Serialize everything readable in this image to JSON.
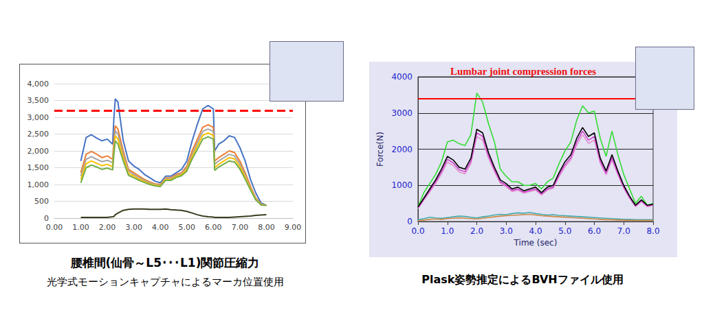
{
  "chart_data": [
    {
      "type": "line",
      "caption": [
        "腰椎間(仙骨～L5･･･L1)関節圧縮力",
        "光学式モーションキャプチャによるマーカ位置使用"
      ],
      "x": [
        1.0,
        1.2,
        1.4,
        1.6,
        1.8,
        2.0,
        2.2,
        2.25,
        2.3,
        2.4,
        2.6,
        2.8,
        3.0,
        3.2,
        3.4,
        3.6,
        3.8,
        4.0,
        4.2,
        4.4,
        4.6,
        4.8,
        5.0,
        5.2,
        5.4,
        5.6,
        5.8,
        6.0,
        6.05,
        6.2,
        6.4,
        6.6,
        6.8,
        7.0,
        7.2,
        7.4,
        7.6,
        7.8,
        8.0
      ],
      "series": [
        {
          "color": "#4472c4",
          "values": [
            1700,
            2400,
            2480,
            2380,
            2300,
            2350,
            2200,
            3000,
            3550,
            3450,
            2300,
            1700,
            1550,
            1450,
            1300,
            1200,
            1100,
            1050,
            1250,
            1250,
            1350,
            1450,
            1700,
            2300,
            2800,
            3250,
            3350,
            3250,
            2000,
            2200,
            2300,
            2450,
            2400,
            2100,
            1700,
            1150,
            750,
            450,
            380
          ]
        },
        {
          "color": "#ed7d31",
          "values": [
            1350,
            1900,
            1980,
            1900,
            1800,
            1850,
            1750,
            2350,
            2750,
            2650,
            2000,
            1450,
            1350,
            1250,
            1150,
            1080,
            1020,
            1000,
            1200,
            1200,
            1300,
            1350,
            1550,
            2000,
            2350,
            2700,
            2780,
            2700,
            1700,
            1800,
            1900,
            2000,
            1950,
            1700,
            1350,
            950,
            600,
            420,
            380
          ]
        },
        {
          "color": "#a5a5a5",
          "values": [
            1250,
            1750,
            1830,
            1750,
            1680,
            1720,
            1650,
            2200,
            2600,
            2500,
            1900,
            1400,
            1300,
            1200,
            1120,
            1050,
            1000,
            980,
            1180,
            1180,
            1270,
            1320,
            1500,
            1900,
            2250,
            2580,
            2650,
            2580,
            1600,
            1700,
            1800,
            1900,
            1850,
            1620,
            1280,
            900,
            580,
            410,
            380
          ]
        },
        {
          "color": "#ffc000",
          "values": [
            1150,
            1620,
            1700,
            1630,
            1560,
            1600,
            1530,
            2050,
            2450,
            2350,
            1800,
            1330,
            1250,
            1160,
            1090,
            1020,
            980,
            960,
            1150,
            1150,
            1240,
            1290,
            1450,
            1830,
            2150,
            2460,
            2530,
            2460,
            1500,
            1600,
            1700,
            1800,
            1760,
            1540,
            1220,
            870,
            560,
            400,
            380
          ]
        },
        {
          "color": "#70ad47",
          "values": [
            1050,
            1500,
            1580,
            1520,
            1450,
            1490,
            1430,
            1920,
            2300,
            2200,
            1700,
            1270,
            1200,
            1120,
            1060,
            1000,
            960,
            940,
            1120,
            1120,
            1210,
            1260,
            1400,
            1760,
            2050,
            2350,
            2420,
            2350,
            1420,
            1520,
            1610,
            1700,
            1670,
            1460,
            1160,
            840,
            540,
            390,
            380
          ]
        },
        {
          "color": "#3b3b1e",
          "values": [
            20,
            20,
            20,
            20,
            20,
            20,
            40,
            50,
            100,
            150,
            230,
            260,
            270,
            270,
            270,
            260,
            260,
            260,
            270,
            250,
            240,
            230,
            200,
            150,
            100,
            60,
            40,
            30,
            20,
            20,
            20,
            20,
            30,
            40,
            50,
            60,
            80,
            90,
            100
          ]
        }
      ],
      "reference_line": {
        "value": 3200,
        "color": "#ff0000",
        "line_style": "dashed"
      },
      "xlim": [
        0,
        9
      ],
      "xticks": [
        {
          "value": 0,
          "label": "0.00"
        },
        {
          "value": 1,
          "label": "1.00"
        },
        {
          "value": 2,
          "label": "2.00"
        },
        {
          "value": 3,
          "label": "3.00"
        },
        {
          "value": 4,
          "label": "4.00"
        },
        {
          "value": 5,
          "label": "5.00"
        },
        {
          "value": 6,
          "label": "6.00"
        },
        {
          "value": 7,
          "label": "7.00"
        },
        {
          "value": 8,
          "label": "8.00"
        },
        {
          "value": 9,
          "label": "9.00"
        }
      ],
      "ylim": [
        0,
        4000
      ],
      "yticks": [
        0,
        500,
        {
          "value": 1000,
          "label": "1,000"
        },
        {
          "value": 1500,
          "label": "1,500"
        },
        {
          "value": 2000,
          "label": "2,000"
        },
        {
          "value": 2500,
          "label": "2,500"
        },
        {
          "value": 3000,
          "label": "3,000"
        },
        {
          "value": 3500,
          "label": "3,500"
        },
        {
          "value": 4000,
          "label": "4,000"
        }
      ],
      "grid": true
    },
    {
      "type": "line",
      "title": "Lumbar joint compression forces",
      "xlabel": "Time (sec)",
      "ylabel": "Force(N)",
      "caption": [
        "Plask姿勢推定によるBVHファイル使用"
      ],
      "x": [
        0.0,
        0.2,
        0.4,
        0.6,
        0.8,
        1.0,
        1.2,
        1.4,
        1.6,
        1.8,
        2.0,
        2.2,
        2.4,
        2.6,
        2.8,
        3.0,
        3.2,
        3.4,
        3.6,
        3.8,
        4.0,
        4.2,
        4.4,
        4.6,
        4.8,
        5.0,
        5.2,
        5.4,
        5.6,
        5.8,
        6.0,
        6.2,
        6.4,
        6.6,
        6.8,
        7.0,
        7.2,
        7.4,
        7.6,
        7.8,
        8.0
      ],
      "series": [
        {
          "color": "#33dd33",
          "values": [
            400,
            800,
            1050,
            1300,
            1650,
            2200,
            2250,
            2150,
            2100,
            2400,
            3550,
            3300,
            2700,
            2200,
            1450,
            1250,
            1100,
            1100,
            1000,
            1000,
            1050,
            900,
            1100,
            1200,
            1600,
            1950,
            2200,
            2800,
            3200,
            3000,
            3050,
            2300,
            1800,
            2500,
            1850,
            1300,
            900,
            500,
            700,
            450,
            500
          ]
        },
        {
          "color": "#e58fd0",
          "values": [
            360,
            590,
            820,
            1050,
            1320,
            1640,
            1550,
            1370,
            1320,
            1600,
            2350,
            2250,
            1750,
            1380,
            1060,
            960,
            830,
            870,
            780,
            830,
            870,
            730,
            870,
            920,
            1240,
            1510,
            1700,
            2110,
            2400,
            2160,
            2250,
            1610,
            1290,
            1700,
            1290,
            920,
            640,
            410,
            550,
            410,
            440
          ]
        },
        {
          "color": "#cc44cc",
          "values": [
            380,
            620,
            860,
            1100,
            1380,
            1720,
            1620,
            1430,
            1380,
            1670,
            2450,
            2350,
            1820,
            1440,
            1100,
            1000,
            860,
            900,
            810,
            860,
            900,
            760,
            900,
            950,
            1290,
            1570,
            1770,
            2200,
            2500,
            2250,
            2350,
            1680,
            1340,
            1770,
            1340,
            950,
            670,
            430,
            570,
            430,
            460
          ]
        },
        {
          "color": "#000000",
          "values": [
            400,
            650,
            900,
            1150,
            1450,
            1800,
            1700,
            1500,
            1450,
            1750,
            2550,
            2450,
            1900,
            1500,
            1150,
            1050,
            900,
            950,
            850,
            900,
            950,
            800,
            950,
            1000,
            1350,
            1650,
            1850,
            2300,
            2600,
            2350,
            2450,
            1750,
            1400,
            1850,
            1400,
            1000,
            700,
            450,
            600,
            450,
            480
          ]
        },
        {
          "color": "#44aaaa",
          "values": [
            50,
            80,
            120,
            100,
            90,
            110,
            130,
            150,
            140,
            120,
            100,
            130,
            150,
            180,
            200,
            190,
            220,
            240,
            230,
            250,
            220,
            200,
            180,
            190,
            170,
            160,
            150,
            140,
            130,
            120,
            110,
            100,
            90,
            80,
            70,
            60,
            60,
            50,
            50,
            50,
            50
          ]
        },
        {
          "color": "#cc8844",
          "values": [
            20,
            40,
            60,
            70,
            60,
            80,
            90,
            100,
            90,
            80,
            70,
            90,
            110,
            130,
            150,
            160,
            170,
            180,
            190,
            200,
            180,
            160,
            150,
            140,
            130,
            120,
            110,
            100,
            90,
            80,
            70,
            60,
            50,
            50,
            40,
            40,
            30,
            30,
            30,
            30,
            30
          ]
        }
      ],
      "reference_line": {
        "value": 3400,
        "color": "#ff0000",
        "line_style": "solid"
      },
      "xlim": [
        0,
        8
      ],
      "xticks": [
        {
          "value": 0,
          "label": "0.0"
        },
        {
          "value": 1,
          "label": "1.0"
        },
        {
          "value": 2,
          "label": "2.0"
        },
        {
          "value": 3,
          "label": "3.0"
        },
        {
          "value": 4,
          "label": "4.0"
        },
        {
          "value": 5,
          "label": "5.0"
        },
        {
          "value": 6,
          "label": "6.0"
        },
        {
          "value": 7,
          "label": "7.0"
        },
        {
          "value": 8,
          "label": "8.0"
        }
      ],
      "ylim": [
        0,
        4000
      ],
      "yticks": [
        0,
        1000,
        2000,
        3000,
        4000
      ],
      "grid": true
    }
  ]
}
